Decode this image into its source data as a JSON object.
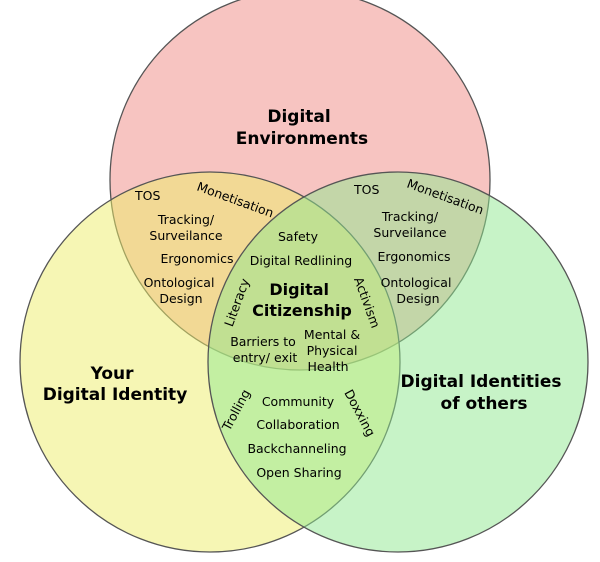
{
  "colors": {
    "environments": "#f08a83",
    "your_identity": "#eeee6a",
    "others": "#8fe890",
    "stroke": "#555555"
  },
  "sets": {
    "environments": [
      "Digital",
      "Environments"
    ],
    "your_identity": [
      "Your",
      "Digital Identity"
    ],
    "others": [
      "Digital Identities",
      "of others"
    ]
  },
  "center": {
    "title": [
      "Digital",
      "Citizenship"
    ],
    "top": [
      "Safety",
      "Digital Redlining"
    ],
    "left_arc": "Literacy",
    "right_arc": "Activism",
    "bottom_left": [
      "Barriers to",
      "entry/ exit"
    ],
    "bottom_right": [
      "Mental &",
      "Physical",
      "Health"
    ]
  },
  "env_you": {
    "tos": "TOS",
    "monetisation": "Monetisation",
    "items": [
      "Tracking/",
      "Surveilance",
      "Ergonomics",
      "Ontological",
      "Design"
    ]
  },
  "env_others": {
    "tos": "TOS",
    "monetisation": "Monetisation",
    "items": [
      "Tracking/",
      "Surveilance",
      "Ergonomics",
      "Ontological",
      "Design"
    ]
  },
  "you_others": {
    "left_arc": "Trolling",
    "right_arc": "Doxxing",
    "items": [
      "Community",
      "Collaboration",
      "Backchanneling",
      "Open Sharing"
    ]
  }
}
